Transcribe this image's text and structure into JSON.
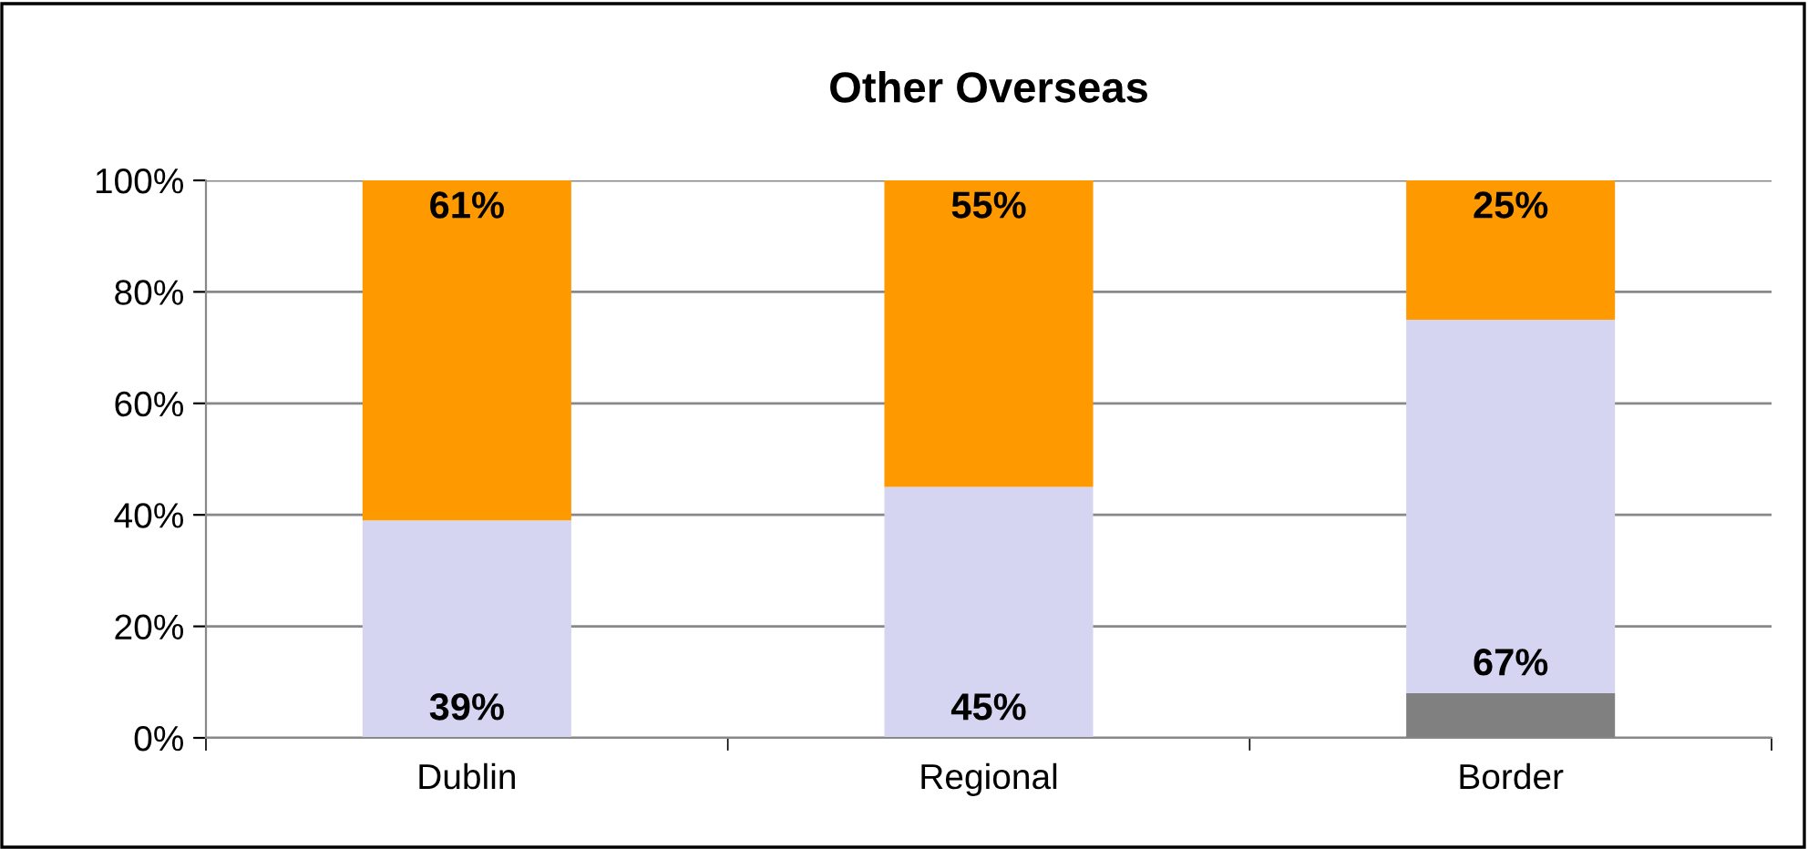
{
  "chart_data": {
    "type": "bar",
    "title": "Other Overseas",
    "stacked": true,
    "categories": [
      "Dublin",
      "Regional",
      "Border"
    ],
    "series": [
      {
        "color": "#808080",
        "values": [
          0,
          0,
          8
        ]
      },
      {
        "color": "#d5d5f2",
        "values": [
          39,
          45,
          67
        ],
        "value_labels": [
          "39%",
          "45%",
          "67%"
        ]
      },
      {
        "color": "#ff9900",
        "values": [
          61,
          55,
          25
        ],
        "value_labels": [
          "61%",
          "55%",
          "25%"
        ]
      }
    ],
    "ylim": [
      0,
      100
    ],
    "yticks": [
      {
        "value": 0,
        "label": "0%"
      },
      {
        "value": 20,
        "label": "20%"
      },
      {
        "value": 40,
        "label": "40%"
      },
      {
        "value": 60,
        "label": "60%"
      },
      {
        "value": 80,
        "label": "80%"
      },
      {
        "value": 100,
        "label": "100%"
      }
    ],
    "grid": "y",
    "legend": false
  }
}
